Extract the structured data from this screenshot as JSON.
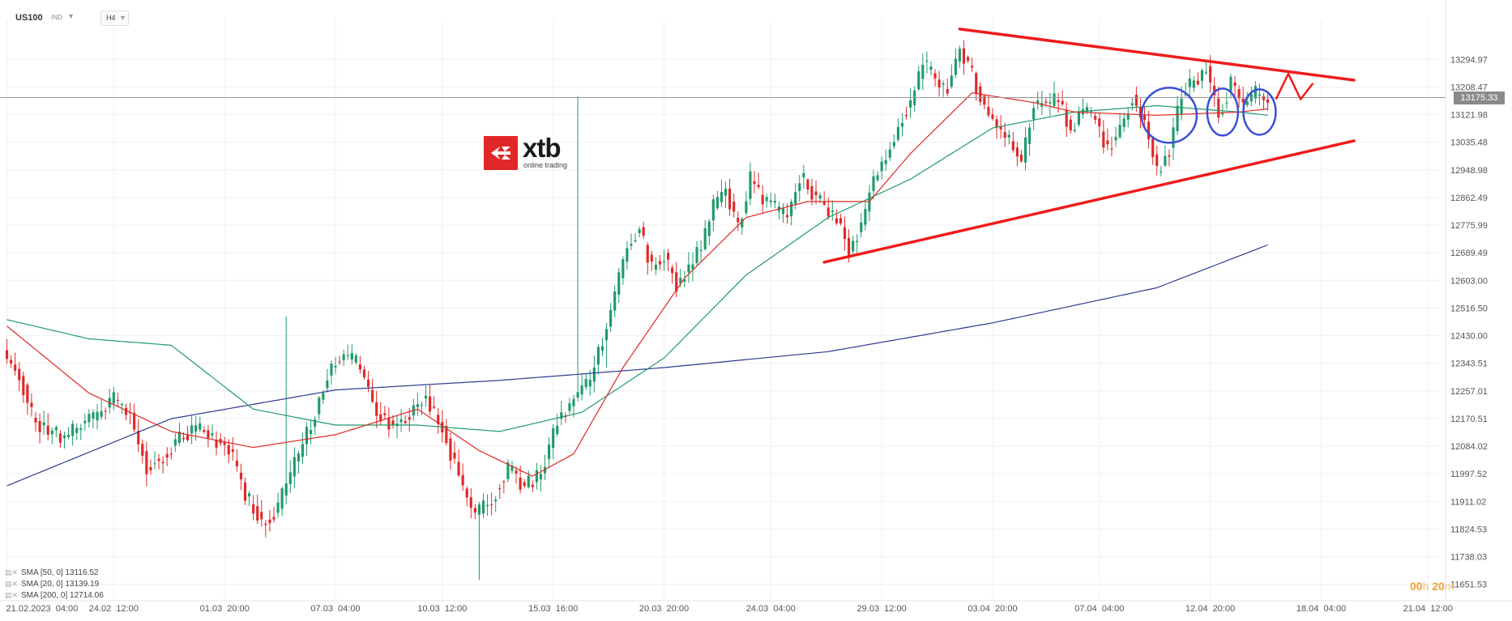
{
  "header": {
    "symbol": "US100",
    "symbol_type": "IND",
    "timeframe": "H4"
  },
  "logo": {
    "name": "xtb",
    "tagline": "online trading",
    "icon": "x-mark-icon",
    "color": "#e02828"
  },
  "current_price": "13175.33",
  "countdown": {
    "hours": "00",
    "hours_unit": "h",
    "minutes": "20",
    "minutes_unit": "m"
  },
  "legend": [
    {
      "label": "SMA [50, 0]",
      "value": "13116.52",
      "color": "#1e9b6a"
    },
    {
      "label": "SMA [20, 0]",
      "value": "13139.19",
      "color": "#e02828"
    },
    {
      "label": "SMA [200, 0]",
      "value": "12714.06",
      "color": "#2c3b8f"
    }
  ],
  "chart_data": {
    "type": "candlestick",
    "symbol": "US100",
    "timeframe": "H4",
    "y_range": [
      11600,
      13420
    ],
    "price_ticks": [
      "13294.97",
      "13208.47",
      "13121.98",
      "13035.48",
      "12948.98",
      "12862.49",
      "12775.99",
      "12689.49",
      "12603.00",
      "12516.50",
      "12430.00",
      "12343.51",
      "12257.01",
      "12170.51",
      "12084.02",
      "11997.52",
      "11911.02",
      "11824.53",
      "11738.03",
      "11651.53"
    ],
    "time_labels": [
      "21.02.2023  04:00",
      "24.02  12:00",
      "01.03  20:00",
      "07.03  04:00",
      "10.03  12:00",
      "15.03  16:00",
      "20.03  20:00",
      "24.03  04:00",
      "29.03  12:00",
      "03.04  20:00",
      "07.04  04:00",
      "12.04  20:00",
      "18.04  04:00",
      "21.04  12:00"
    ],
    "colors": {
      "up": "#1e9b6a",
      "down": "#e02828",
      "sma50": "#1e9b6a",
      "sma20": "#e02828",
      "sma200": "#2c3b8f",
      "trendline": "#ee1c1c",
      "circle": "#3a4fd6"
    },
    "candle_anchors": [
      [
        0,
        12345
      ],
      [
        3,
        12310
      ],
      [
        6,
        12180
      ],
      [
        10,
        12130
      ],
      [
        14,
        12110
      ],
      [
        18,
        12150
      ],
      [
        22,
        12180
      ],
      [
        26,
        12230
      ],
      [
        30,
        12180
      ],
      [
        34,
        12020
      ],
      [
        38,
        12050
      ],
      [
        42,
        12110
      ],
      [
        46,
        12140
      ],
      [
        50,
        12110
      ],
      [
        54,
        12080
      ],
      [
        58,
        11930
      ],
      [
        62,
        11850
      ],
      [
        66,
        11890
      ],
      [
        70,
        12030
      ],
      [
        74,
        12150
      ],
      [
        78,
        12310
      ],
      [
        82,
        12370
      ],
      [
        86,
        12330
      ],
      [
        90,
        12190
      ],
      [
        94,
        12150
      ],
      [
        98,
        12190
      ],
      [
        102,
        12240
      ],
      [
        106,
        12140
      ],
      [
        110,
        11990
      ],
      [
        114,
        11870
      ],
      [
        118,
        11920
      ],
      [
        122,
        12010
      ],
      [
        126,
        11960
      ],
      [
        130,
        11990
      ],
      [
        134,
        12170
      ],
      [
        138,
        12230
      ],
      [
        142,
        12290
      ],
      [
        145,
        12420
      ],
      [
        148,
        12550
      ],
      [
        151,
        12720
      ],
      [
        154,
        12760
      ],
      [
        157,
        12640
      ],
      [
        160,
        12680
      ],
      [
        163,
        12590
      ],
      [
        166,
        12640
      ],
      [
        169,
        12710
      ],
      [
        172,
        12830
      ],
      [
        175,
        12890
      ],
      [
        178,
        12760
      ],
      [
        181,
        12920
      ],
      [
        184,
        12850
      ],
      [
        187,
        12830
      ],
      [
        190,
        12800
      ],
      [
        193,
        12930
      ],
      [
        196,
        12880
      ],
      [
        199,
        12840
      ],
      [
        202,
        12790
      ],
      [
        205,
        12700
      ],
      [
        208,
        12780
      ],
      [
        211,
        12920
      ],
      [
        214,
        12980
      ],
      [
        217,
        13090
      ],
      [
        220,
        13160
      ],
      [
        223,
        13280
      ],
      [
        226,
        13230
      ],
      [
        229,
        13200
      ],
      [
        232,
        13320
      ],
      [
        235,
        13250
      ],
      [
        238,
        13140
      ],
      [
        241,
        13090
      ],
      [
        244,
        13040
      ],
      [
        247,
        12980
      ],
      [
        250,
        13160
      ],
      [
        253,
        13150
      ],
      [
        256,
        13170
      ],
      [
        259,
        13080
      ],
      [
        262,
        13140
      ],
      [
        265,
        13100
      ],
      [
        268,
        13010
      ],
      [
        271,
        13080
      ],
      [
        274,
        13180
      ],
      [
        277,
        13100
      ],
      [
        280,
        12950
      ],
      [
        283,
        13010
      ],
      [
        286,
        13190
      ],
      [
        289,
        13220
      ],
      [
        292,
        13270
      ],
      [
        295,
        13120
      ],
      [
        298,
        13220
      ],
      [
        301,
        13160
      ],
      [
        304,
        13190
      ],
      [
        307,
        13150
      ]
    ],
    "sma50_anchors": [
      [
        0,
        12480
      ],
      [
        20,
        12420
      ],
      [
        40,
        12400
      ],
      [
        60,
        12200
      ],
      [
        80,
        12150
      ],
      [
        100,
        12150
      ],
      [
        120,
        12130
      ],
      [
        140,
        12190
      ],
      [
        160,
        12360
      ],
      [
        180,
        12620
      ],
      [
        200,
        12800
      ],
      [
        220,
        12920
      ],
      [
        240,
        13080
      ],
      [
        260,
        13130
      ],
      [
        280,
        13150
      ],
      [
        300,
        13130
      ],
      [
        307,
        13120
      ]
    ],
    "sma20_anchors": [
      [
        0,
        12460
      ],
      [
        20,
        12250
      ],
      [
        40,
        12130
      ],
      [
        60,
        12080
      ],
      [
        80,
        12120
      ],
      [
        100,
        12200
      ],
      [
        115,
        12070
      ],
      [
        128,
        11990
      ],
      [
        138,
        12060
      ],
      [
        150,
        12330
      ],
      [
        165,
        12610
      ],
      [
        180,
        12800
      ],
      [
        195,
        12850
      ],
      [
        210,
        12850
      ],
      [
        220,
        13000
      ],
      [
        235,
        13190
      ],
      [
        250,
        13160
      ],
      [
        260,
        13130
      ],
      [
        280,
        13120
      ],
      [
        300,
        13130
      ],
      [
        307,
        13140
      ]
    ],
    "sma200_anchors": [
      [
        0,
        11960
      ],
      [
        40,
        12170
      ],
      [
        80,
        12260
      ],
      [
        120,
        12290
      ],
      [
        160,
        12330
      ],
      [
        200,
        12380
      ],
      [
        240,
        12470
      ],
      [
        280,
        12580
      ],
      [
        307,
        12714
      ]
    ],
    "trendlines": [
      {
        "from": [
          232,
          13390
        ],
        "to": [
          328,
          13230
        ]
      },
      {
        "from": [
          199,
          12660
        ],
        "to": [
          328,
          13040
        ]
      }
    ],
    "circles": [
      [
        283,
        13120
      ],
      [
        296,
        13130
      ],
      [
        305,
        13130
      ]
    ]
  }
}
